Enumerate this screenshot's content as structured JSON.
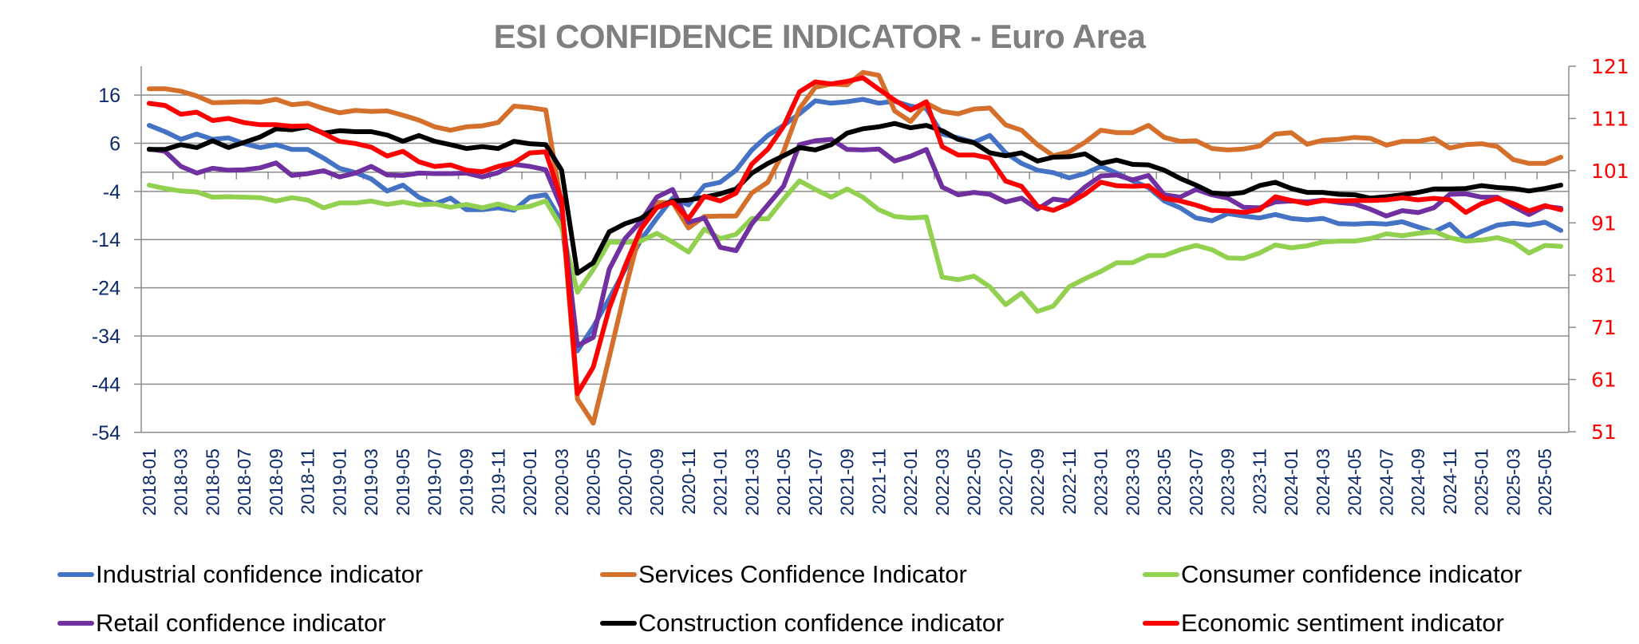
{
  "chart_data": {
    "type": "line",
    "title": "ESI CONFIDENCE INDICATOR - Euro Area",
    "xlabel": "",
    "ylabel": "",
    "y2label": "",
    "ylim": [
      -54,
      22
    ],
    "y2lim": [
      51,
      121
    ],
    "yticks": [
      16,
      6,
      -4,
      -14,
      -24,
      -34,
      -44,
      -54
    ],
    "y2ticks": [
      121,
      111,
      101,
      91,
      81,
      71,
      61,
      51
    ],
    "grid": true,
    "legend_position": "bottom",
    "x": [
      "2018-01",
      "2018-02",
      "2018-03",
      "2018-04",
      "2018-05",
      "2018-06",
      "2018-07",
      "2018-08",
      "2018-09",
      "2018-10",
      "2018-11",
      "2018-12",
      "2019-01",
      "2019-02",
      "2019-03",
      "2019-04",
      "2019-05",
      "2019-06",
      "2019-07",
      "2019-08",
      "2019-09",
      "2019-10",
      "2019-11",
      "2019-12",
      "2020-01",
      "2020-02",
      "2020-03",
      "2020-04",
      "2020-05",
      "2020-06",
      "2020-07",
      "2020-08",
      "2020-09",
      "2020-10",
      "2020-11",
      "2020-12",
      "2021-01",
      "2021-02",
      "2021-03",
      "2021-04",
      "2021-05",
      "2021-06",
      "2021-07",
      "2021-08",
      "2021-09",
      "2021-10",
      "2021-11",
      "2021-12",
      "2022-01",
      "2022-02",
      "2022-03",
      "2022-04",
      "2022-05",
      "2022-06",
      "2022-07",
      "2022-08",
      "2022-09",
      "2022-10",
      "2022-11",
      "2022-12",
      "2023-01",
      "2023-02",
      "2023-03",
      "2023-04",
      "2023-05",
      "2023-06",
      "2023-07",
      "2023-08",
      "2023-09",
      "2023-10",
      "2023-11",
      "2023-12",
      "2024-01",
      "2024-02",
      "2024-03",
      "2024-04",
      "2024-05",
      "2024-06",
      "2024-07",
      "2024-08",
      "2024-09",
      "2024-10",
      "2024-11",
      "2024-12",
      "2025-01",
      "2025-02",
      "2025-03",
      "2025-04",
      "2025-05",
      "2025-06"
    ],
    "xtick_labels": [
      "2018-01",
      "2018-03",
      "2018-05",
      "2018-07",
      "2018-09",
      "2018-11",
      "2019-01",
      "2019-03",
      "2019-05",
      "2019-07",
      "2019-09",
      "2019-11",
      "2020-01",
      "2020-03",
      "2020-05",
      "2020-07",
      "2020-09",
      "2020-11",
      "2021-01",
      "2021-03",
      "2021-05",
      "2021-07",
      "2021-09",
      "2021-11",
      "2022-01",
      "2022-03",
      "2022-05",
      "2022-07",
      "2022-09",
      "2022-11",
      "2023-01",
      "2023-03",
      "2023-05",
      "2023-07",
      "2023-09",
      "2023-11",
      "2024-01",
      "2024-03",
      "2024-05",
      "2024-07",
      "2024-09",
      "2024-11",
      "2025-01",
      "2025-03",
      "2025-05"
    ],
    "series": [
      {
        "name": "Industrial confidence indicator",
        "color": "#4472c4",
        "axis": "left",
        "values": [
          9.7,
          8.4,
          6.8,
          7.9,
          6.8,
          7.1,
          5.9,
          5.1,
          5.7,
          4.7,
          4.7,
          2.9,
          0.8,
          -0.1,
          -1.4,
          -3.9,
          -2.7,
          -5.2,
          -6.6,
          -5.4,
          -7.8,
          -7.8,
          -7.4,
          -7.9,
          -5.2,
          -4.7,
          -10.2,
          -37.1,
          -32.1,
          -26.3,
          -20.2,
          -14.1,
          -9.6,
          -5.4,
          -6.8,
          -2.8,
          -2.1,
          0.4,
          4.6,
          7.6,
          9.7,
          12.1,
          14.8,
          14.3,
          14.6,
          15.1,
          14.3,
          14.7,
          13.7,
          13.2,
          7.9,
          7.1,
          6.2,
          7.6,
          4.0,
          1.8,
          0.4,
          -0.1,
          -1.2,
          -0.3,
          1.2,
          -0.2,
          -1.8,
          -3.2,
          -6.0,
          -7.4,
          -9.5,
          -10.1,
          -8.6,
          -9.1,
          -9.5,
          -8.8,
          -9.6,
          -9.9,
          -9.6,
          -10.7,
          -10.8,
          -10.6,
          -10.8,
          -10.3,
          -11.4,
          -12.4,
          -10.8,
          -13.9,
          -12.3,
          -11.0,
          -10.6,
          -11.0,
          -10.4,
          -12.1
        ]
      },
      {
        "name": "Services Confidence Indicator",
        "color": "#d4702c",
        "axis": "left",
        "values": [
          17.3,
          17.3,
          16.8,
          15.8,
          14.4,
          14.5,
          14.6,
          14.5,
          15.1,
          14.0,
          14.3,
          13.2,
          12.3,
          12.8,
          12.6,
          12.7,
          11.8,
          10.8,
          9.4,
          8.7,
          9.4,
          9.6,
          10.3,
          13.7,
          13.4,
          12.9,
          -7.0,
          -47.1,
          -52.1,
          -38.5,
          -24.6,
          -11.8,
          -6.3,
          -6.3,
          -11.6,
          -9.2,
          -9.1,
          -9.1,
          -4.3,
          -2.1,
          4.3,
          13.2,
          17.6,
          18.3,
          18.1,
          20.7,
          20.1,
          12.7,
          10.5,
          14.3,
          12.6,
          12.1,
          13.1,
          13.3,
          9.8,
          8.7,
          5.7,
          3.4,
          4.2,
          6.2,
          8.7,
          8.2,
          8.2,
          9.7,
          7.2,
          6.4,
          6.5,
          4.9,
          4.6,
          4.8,
          5.4,
          7.9,
          8.2,
          5.8,
          6.6,
          6.8,
          7.2,
          7.0,
          5.6,
          6.4,
          6.4,
          7.0,
          5.0,
          5.7,
          5.9,
          5.3,
          2.6,
          1.8,
          1.8,
          3.1
        ]
      },
      {
        "name": "Consumer confidence indicator",
        "color": "#92d050",
        "axis": "left",
        "values": [
          -2.7,
          -3.4,
          -3.9,
          -4.1,
          -5.2,
          -5.1,
          -5.2,
          -5.3,
          -6.0,
          -5.3,
          -5.8,
          -7.4,
          -6.4,
          -6.4,
          -6.0,
          -6.7,
          -6.2,
          -6.8,
          -6.6,
          -7.3,
          -6.7,
          -7.4,
          -6.6,
          -7.5,
          -7.1,
          -6.0,
          -11.5,
          -24.9,
          -20.2,
          -14.5,
          -14.6,
          -14.3,
          -12.7,
          -14.5,
          -16.6,
          -11.8,
          -13.8,
          -12.9,
          -9.6,
          -9.7,
          -5.6,
          -1.8,
          -3.6,
          -5.2,
          -3.5,
          -5.2,
          -7.8,
          -9.2,
          -9.5,
          -9.3,
          -21.8,
          -22.3,
          -21.6,
          -23.8,
          -27.5,
          -25.1,
          -28.9,
          -27.8,
          -23.8,
          -22.1,
          -20.6,
          -18.8,
          -18.8,
          -17.3,
          -17.3,
          -16.1,
          -15.2,
          -16.1,
          -17.8,
          -17.9,
          -16.8,
          -15.1,
          -15.7,
          -15.3,
          -14.5,
          -14.3,
          -14.3,
          -13.8,
          -12.8,
          -13.2,
          -12.7,
          -12.3,
          -13.6,
          -14.3,
          -14.1,
          -13.6,
          -14.5,
          -16.8,
          -15.2,
          -15.4
        ]
      },
      {
        "name": "Retail confidence indicator",
        "color": "#7030a0",
        "axis": "left",
        "values": [
          4.8,
          4.3,
          1.2,
          -0.2,
          0.8,
          0.4,
          0.5,
          0.9,
          1.9,
          -0.7,
          -0.3,
          0.3,
          -1.0,
          -0.2,
          1.2,
          -0.6,
          -0.7,
          -0.2,
          -0.3,
          -0.3,
          -0.2,
          -1.0,
          -0.1,
          1.6,
          1.2,
          0.5,
          -7.4,
          -36.0,
          -34.3,
          -20.2,
          -13.8,
          -10.2,
          -5.2,
          -3.6,
          -10.4,
          -9.5,
          -15.6,
          -16.3,
          -10.7,
          -6.8,
          -2.9,
          5.7,
          6.5,
          6.8,
          4.7,
          4.6,
          4.8,
          2.3,
          3.3,
          4.7,
          -3.1,
          -4.7,
          -4.2,
          -4.6,
          -6.2,
          -5.4,
          -7.7,
          -5.6,
          -6.0,
          -3.1,
          -0.8,
          -0.6,
          -1.6,
          -0.7,
          -4.7,
          -5.2,
          -3.6,
          -4.7,
          -5.4,
          -7.3,
          -7.4,
          -6.2,
          -6.0,
          -6.2,
          -5.8,
          -6.3,
          -6.6,
          -7.7,
          -9.1,
          -8.0,
          -8.4,
          -7.4,
          -4.6,
          -4.5,
          -5.2,
          -5.2,
          -7.1,
          -8.8,
          -7.1,
          -7.5
        ]
      },
      {
        "name": "Construction confidence indicator",
        "color": "#000000",
        "axis": "left",
        "values": [
          4.7,
          4.7,
          5.7,
          5.1,
          6.5,
          5.1,
          6.2,
          7.3,
          9.0,
          8.8,
          9.4,
          8.1,
          8.6,
          8.4,
          8.4,
          7.7,
          6.4,
          7.6,
          6.4,
          5.7,
          4.9,
          5.3,
          4.9,
          6.4,
          5.9,
          5.7,
          0.4,
          -21.0,
          -18.8,
          -12.4,
          -10.7,
          -9.6,
          -7.4,
          -6.0,
          -5.8,
          -5.2,
          -4.5,
          -3.5,
          -0.2,
          1.8,
          3.4,
          5.1,
          4.6,
          5.7,
          8.1,
          9.0,
          9.4,
          10.1,
          9.2,
          9.7,
          8.6,
          6.8,
          6.1,
          4.0,
          3.4,
          4.0,
          2.3,
          3.1,
          3.2,
          3.8,
          1.8,
          2.5,
          1.6,
          1.5,
          0.4,
          -1.3,
          -2.7,
          -4.3,
          -4.6,
          -4.2,
          -2.8,
          -2.1,
          -3.4,
          -4.2,
          -4.2,
          -4.6,
          -4.7,
          -5.4,
          -5.1,
          -4.7,
          -4.2,
          -3.5,
          -3.5,
          -3.4,
          -2.8,
          -3.2,
          -3.4,
          -3.9,
          -3.4,
          -2.7
        ]
      },
      {
        "name": "Economic sentiment indicator",
        "color": "#ff0000",
        "axis": "right",
        "values": [
          113.9,
          113.5,
          111.8,
          112.2,
          110.6,
          111.0,
          110.2,
          109.8,
          109.8,
          109.5,
          109.6,
          108.1,
          106.6,
          106.2,
          105.5,
          103.8,
          104.7,
          102.7,
          101.8,
          102.1,
          101.1,
          100.8,
          101.8,
          102.5,
          104.4,
          104.6,
          95.4,
          58.3,
          63.4,
          74.6,
          82.7,
          89.8,
          93.9,
          95.0,
          91.8,
          96.1,
          95.2,
          96.7,
          102.3,
          105.1,
          109.5,
          116.1,
          118.0,
          117.6,
          118.1,
          118.8,
          116.6,
          114.5,
          112.6,
          114.2,
          105.6,
          104.0,
          104.0,
          103.4,
          99.0,
          98.0,
          94.2,
          93.4,
          94.7,
          96.5,
          98.8,
          98.1,
          98.0,
          98.1,
          95.7,
          95.2,
          94.4,
          93.4,
          93.3,
          93.0,
          93.5,
          96.0,
          95.3,
          94.7,
          95.3,
          95.2,
          95.3,
          95.3,
          95.4,
          95.8,
          95.4,
          95.7,
          95.4,
          93.0,
          94.7,
          95.7,
          94.7,
          93.3,
          94.3,
          93.5
        ]
      }
    ],
    "colors": {
      "title": "#7f7f7f",
      "left_axis_labels": "#0d2a6b",
      "right_axis_labels": "#ff0000",
      "x_axis_labels": "#0d2a6b",
      "gridlines": "#8c8c8c"
    }
  }
}
